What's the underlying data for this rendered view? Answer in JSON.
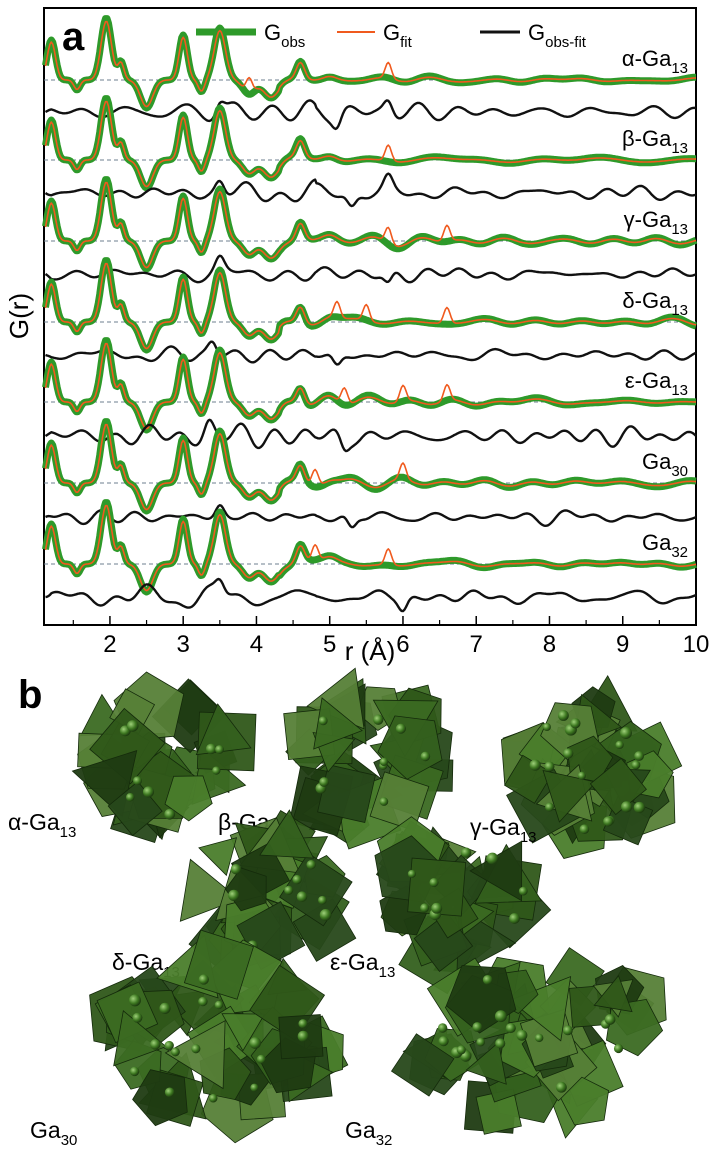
{
  "panel_a": {
    "letter": "a"
  },
  "panel_b": {
    "letter": "b"
  },
  "legend": [
    {
      "main": "G",
      "sub": "obs",
      "color": "#2e9a2a"
    },
    {
      "main": "G",
      "sub": "fit",
      "color": "#f05a1e"
    },
    {
      "main": "G",
      "sub": "obs-fit",
      "color": "#111111"
    }
  ],
  "chart_data": {
    "type": "line",
    "xlabel": "r (Å)",
    "ylabel": "G(r)",
    "xlim": [
      1.1,
      10
    ],
    "x_ticks": [
      "2",
      "3",
      "4",
      "5",
      "6",
      "7",
      "8",
      "9",
      "10"
    ],
    "y_ticks": "none",
    "grid": false,
    "legend_position": "top",
    "peak_positions": [
      1.2,
      1.95,
      3.0,
      3.5,
      4.6
    ],
    "offset_series": [
      {
        "name": "α-Ga13",
        "label_main": "α-Ga",
        "label_sub": "13",
        "fit_extra_peaks": [
          3.9,
          5.8
        ],
        "diff_features": [
          3.5,
          5.1,
          5.8
        ]
      },
      {
        "name": "β-Ga13",
        "label_main": "β-Ga",
        "label_sub": "13",
        "fit_extra_peaks": [
          5.8
        ],
        "diff_features": [
          3.5,
          5.3,
          5.8
        ]
      },
      {
        "name": "γ-Ga13",
        "label_main": "γ-Ga",
        "label_sub": "13",
        "fit_extra_peaks": [
          5.8,
          6.6
        ],
        "diff_features": [
          3.5,
          5.8
        ]
      },
      {
        "name": "δ-Ga13",
        "label_main": "δ-Ga",
        "label_sub": "13",
        "fit_extra_peaks": [
          5.1,
          5.5,
          6.6
        ],
        "diff_features": [
          3.4,
          5.1
        ]
      },
      {
        "name": "ε-Ga13",
        "label_main": "ε-Ga",
        "label_sub": "13",
        "fit_extra_peaks": [
          5.2,
          6.0,
          6.6
        ],
        "diff_features": [
          3.35,
          5.2
        ]
      },
      {
        "name": "Ga30",
        "label_main": "Ga",
        "label_sub": "30",
        "fit_extra_peaks": [
          4.8,
          6.0
        ],
        "diff_features": [
          3.5,
          5.3
        ]
      },
      {
        "name": "Ga32",
        "label_main": "Ga",
        "label_sub": "32",
        "fit_extra_peaks": [
          4.8,
          5.8
        ],
        "diff_features": [
          3.5,
          6.0
        ]
      }
    ]
  },
  "clusters": [
    {
      "id": "alpha",
      "label_main": "α-Ga",
      "label_sub": "13"
    },
    {
      "id": "beta",
      "label_main": "β-Ga",
      "label_sub": "13"
    },
    {
      "id": "gamma",
      "label_main": "γ-Ga",
      "label_sub": "13"
    },
    {
      "id": "delta",
      "label_main": "δ-Ga",
      "label_sub": "13"
    },
    {
      "id": "epsilon",
      "label_main": "ε-Ga",
      "label_sub": "13"
    },
    {
      "id": "ga30",
      "label_main": "Ga",
      "label_sub": "30"
    },
    {
      "id": "ga32",
      "label_main": "Ga",
      "label_sub": "32"
    }
  ]
}
